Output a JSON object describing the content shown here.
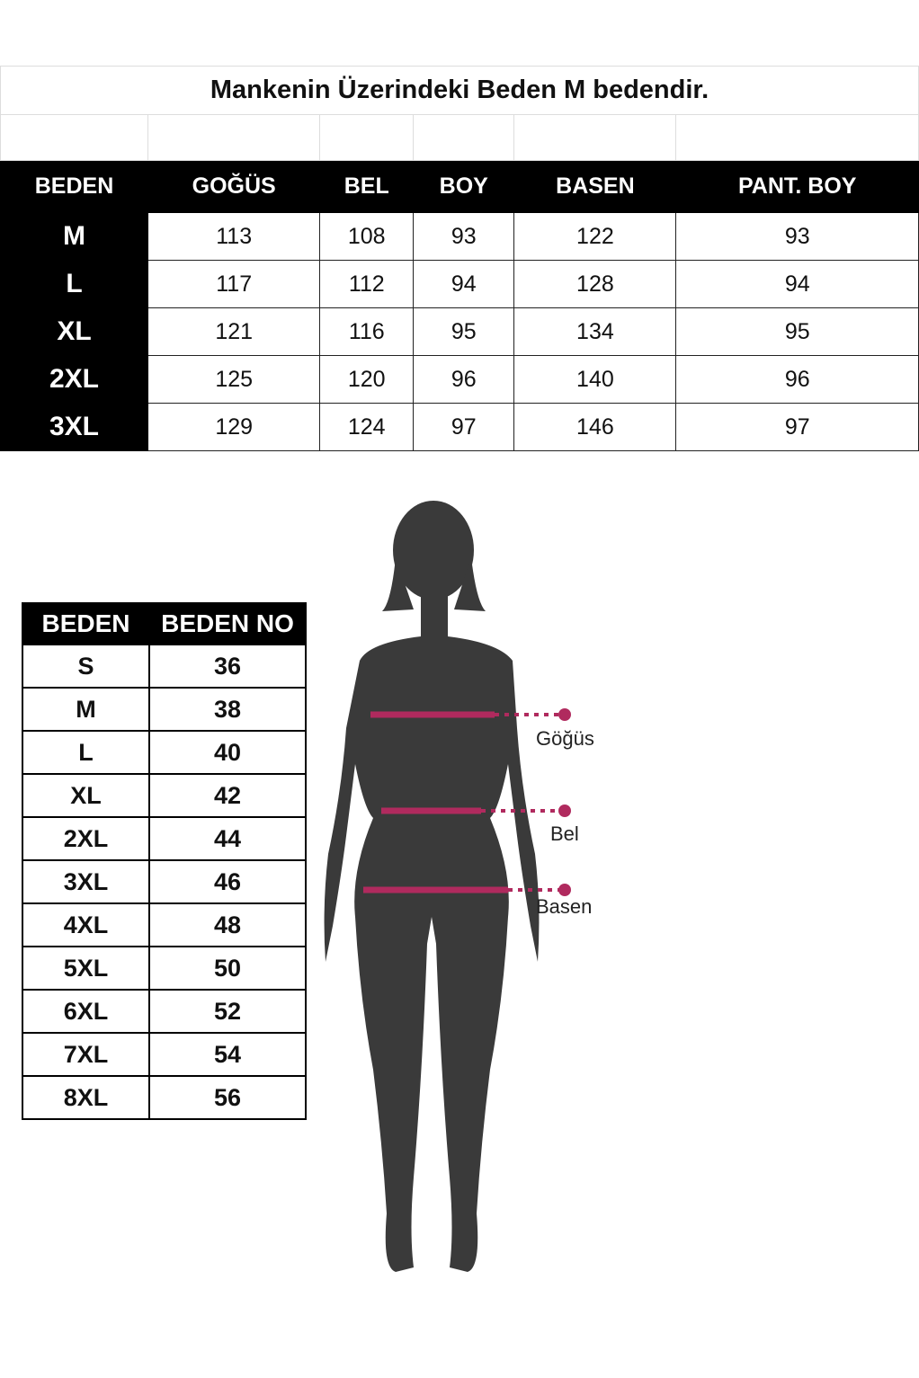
{
  "title": "Mankenin Üzerindeki Beden M bedendir.",
  "measure_table": {
    "headers": [
      "BEDEN",
      "GOĞÜS",
      "BEL",
      "BOY",
      "BASEN",
      "PANT. BOY"
    ],
    "rows": [
      [
        "M",
        "113",
        "108",
        "93",
        "122",
        "93"
      ],
      [
        "L",
        "117",
        "112",
        "94",
        "128",
        "94"
      ],
      [
        "XL",
        "121",
        "116",
        "95",
        "134",
        "95"
      ],
      [
        "2XL",
        "125",
        "120",
        "96",
        "140",
        "96"
      ],
      [
        "3XL",
        "129",
        "124",
        "97",
        "146",
        "97"
      ]
    ]
  },
  "size_table": {
    "headers": [
      "BEDEN",
      "BEDEN NO"
    ],
    "rows": [
      [
        "S",
        "36"
      ],
      [
        "M",
        "38"
      ],
      [
        "L",
        "40"
      ],
      [
        "XL",
        "42"
      ],
      [
        "2XL",
        "44"
      ],
      [
        "3XL",
        "46"
      ],
      [
        "4XL",
        "48"
      ],
      [
        "5XL",
        "50"
      ],
      [
        "6XL",
        "52"
      ],
      [
        "7XL",
        "54"
      ],
      [
        "8XL",
        "56"
      ]
    ]
  },
  "figure": {
    "labels": [
      "Göğüs",
      "Bel",
      "Basen"
    ],
    "marker_color": "#b02a5e",
    "silhouette_color": "#3a3a3a"
  }
}
